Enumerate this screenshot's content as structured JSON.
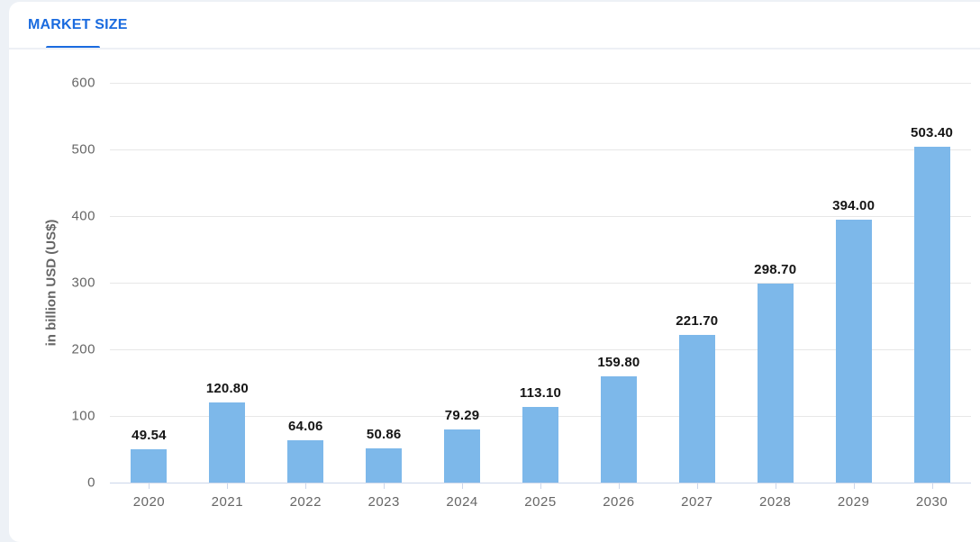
{
  "page": {
    "background_color": "#edf1f6",
    "card_color": "#ffffff"
  },
  "header": {
    "tab_label": "MARKET SIZE",
    "accent_color": "#1a6bdf"
  },
  "chart_data": {
    "type": "bar",
    "title": "",
    "categories": [
      "2020",
      "2021",
      "2022",
      "2023",
      "2024",
      "2025",
      "2026",
      "2027",
      "2028",
      "2029",
      "2030"
    ],
    "values": [
      49.54,
      120.8,
      64.06,
      50.86,
      79.29,
      113.1,
      159.8,
      221.7,
      298.7,
      394.0,
      503.4
    ],
    "value_labels": [
      "49.54",
      "120.80",
      "64.06",
      "50.86",
      "79.29",
      "113.10",
      "159.80",
      "221.70",
      "298.70",
      "394.00",
      "503.40"
    ],
    "xlabel": "",
    "ylabel": "in billion USD (US$)",
    "ylim": [
      0,
      600
    ],
    "yticks": [
      0,
      100,
      200,
      300,
      400,
      500,
      600
    ],
    "grid": true,
    "legend": "none",
    "bar_color": "#7db8ea",
    "value_label_color": "#151515",
    "axis_text_color": "#666666",
    "gridline_color": "#e7e7e7",
    "axis_line_color": "#ccd6ea"
  }
}
